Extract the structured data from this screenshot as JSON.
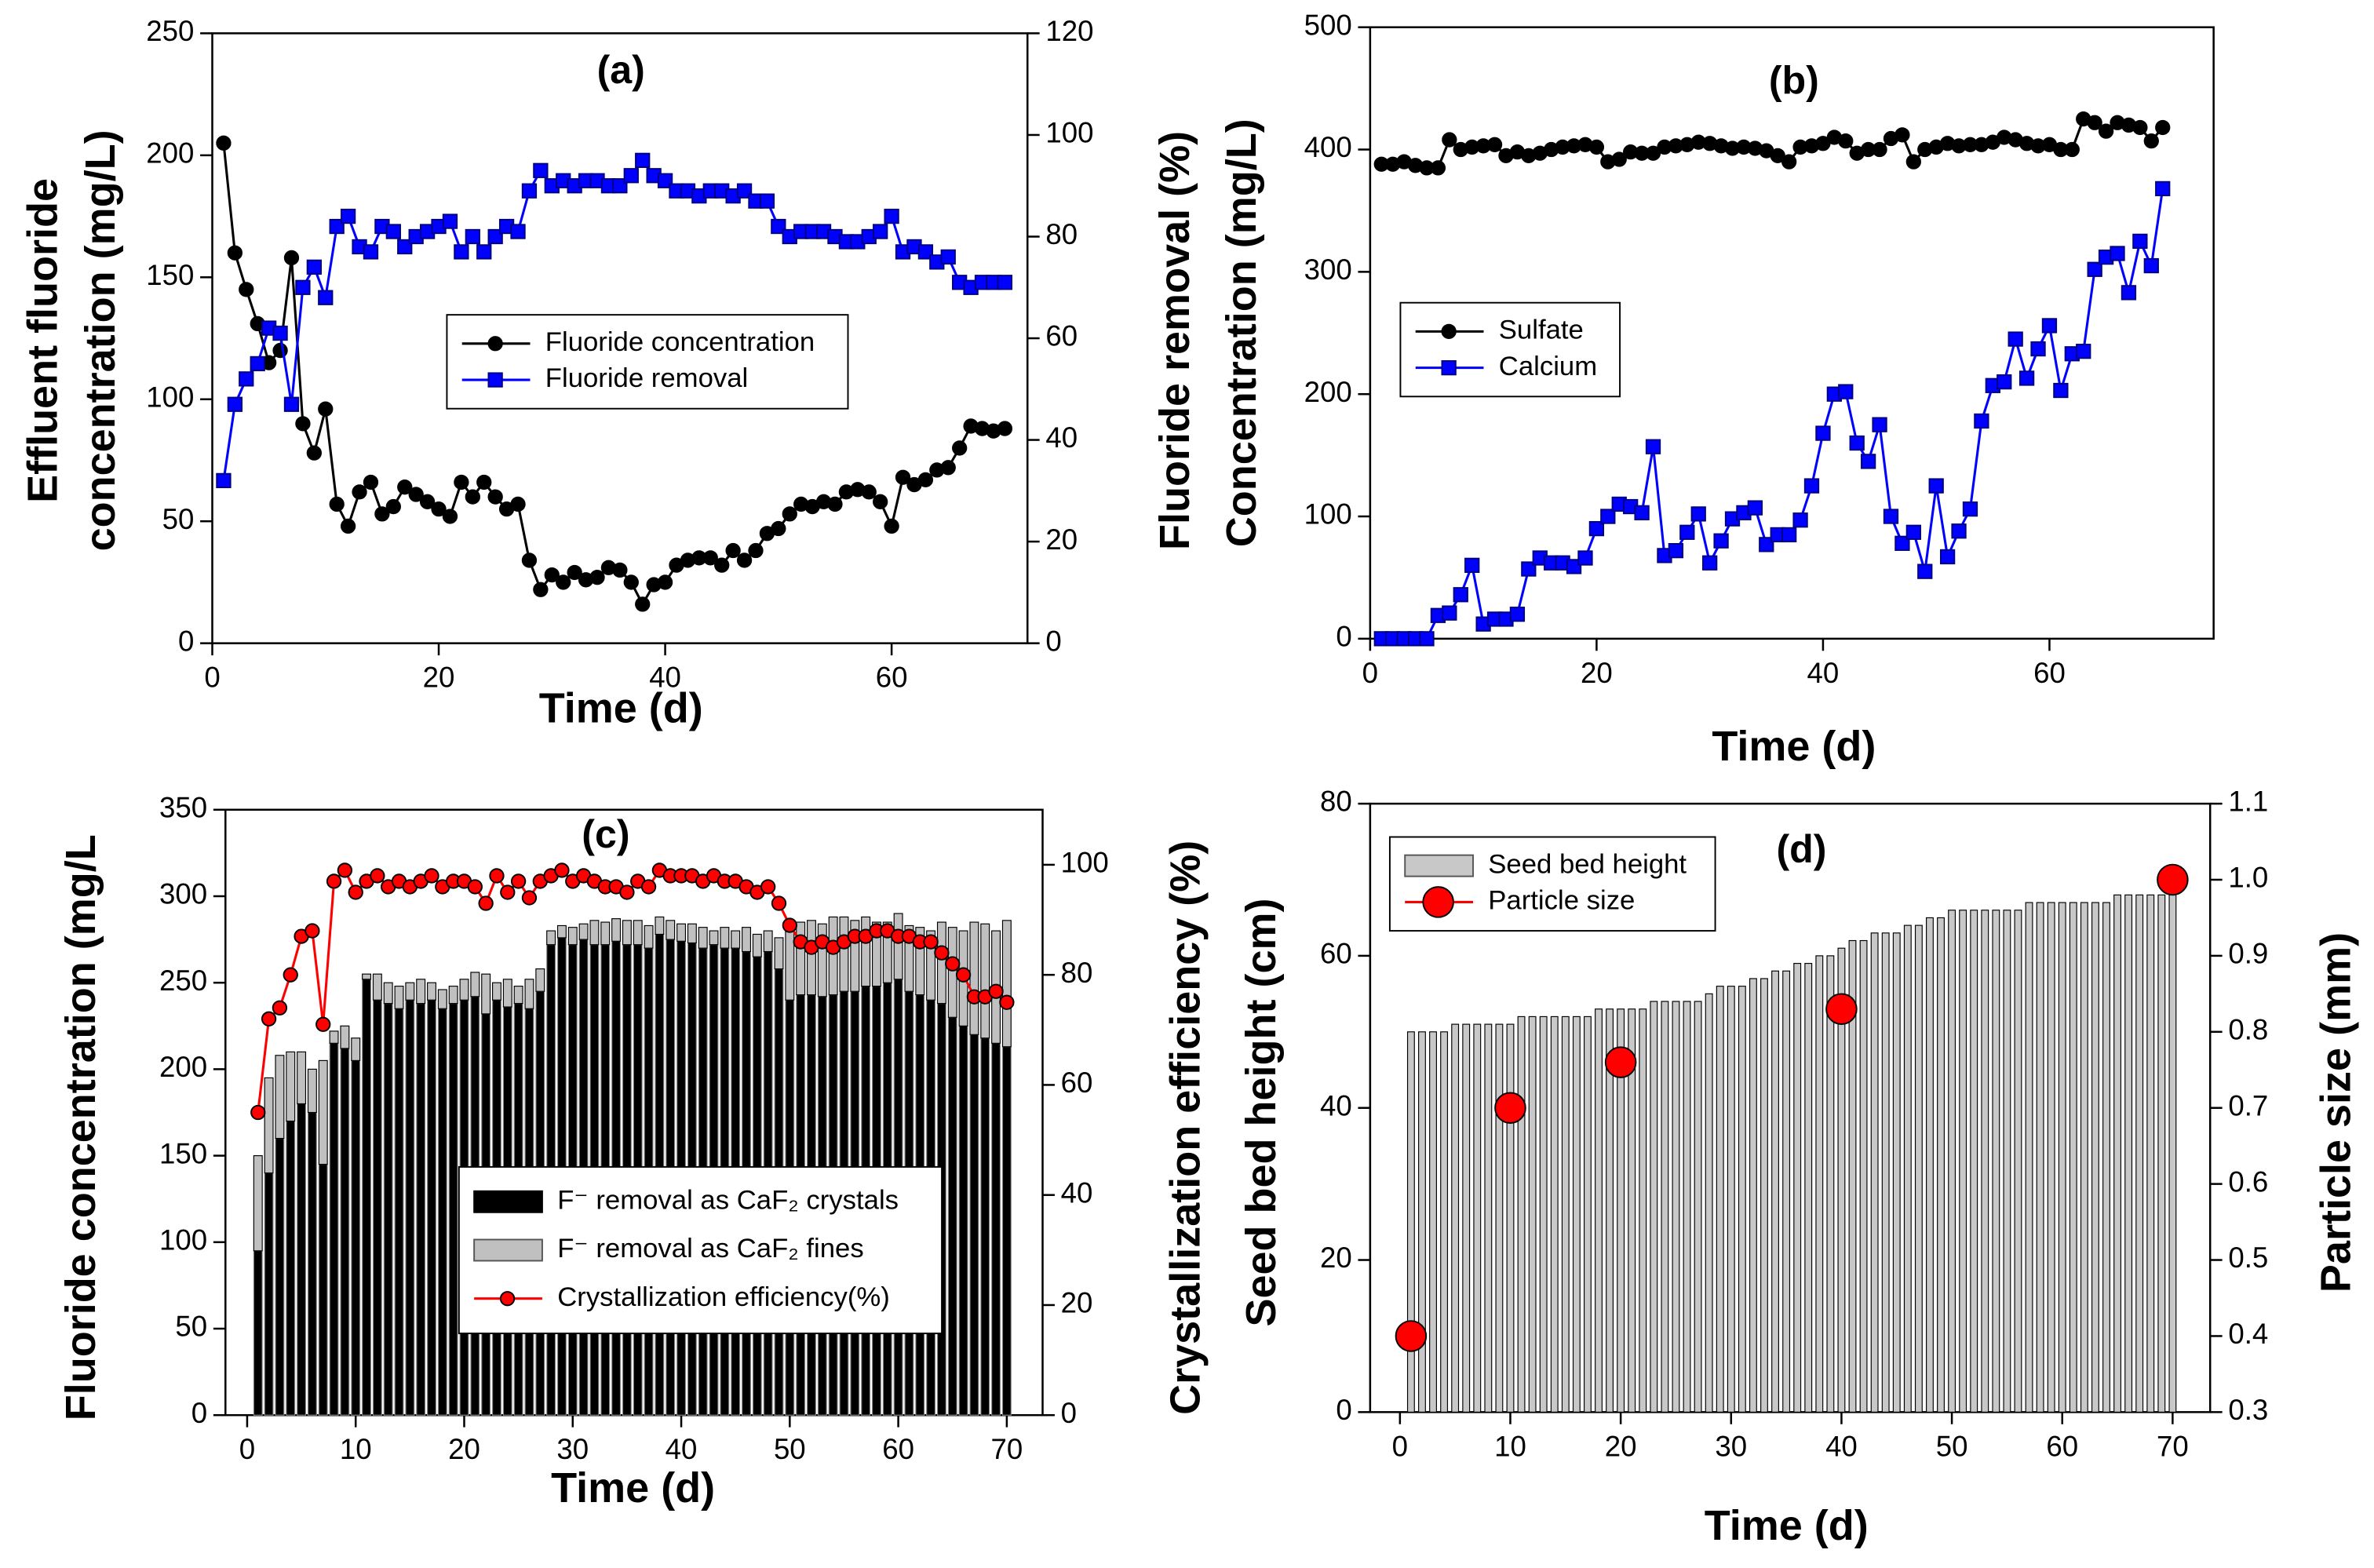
{
  "chart_data": [
    {
      "type": "line",
      "title": "(a)",
      "xlabel": "Time (d)",
      "ylabel": [
        "Effluent fluoride",
        "concentration (mg/L)"
      ],
      "y2label": "Fluoride removal (%)",
      "x": [
        1,
        2,
        3,
        4,
        5,
        6,
        7,
        8,
        9,
        10,
        11,
        12,
        13,
        14,
        15,
        16,
        17,
        18,
        19,
        20,
        21,
        22,
        23,
        24,
        25,
        26,
        27,
        28,
        29,
        30,
        31,
        32,
        33,
        34,
        35,
        36,
        37,
        38,
        39,
        40,
        41,
        42,
        43,
        44,
        45,
        46,
        47,
        48,
        49,
        50,
        51,
        52,
        53,
        54,
        55,
        56,
        57,
        58,
        59,
        60,
        61,
        62,
        63,
        64,
        65,
        66,
        67,
        68,
        69,
        70
      ],
      "xlim": [
        0,
        72
      ],
      "xticks": [
        0,
        20,
        40,
        60
      ],
      "ylim": [
        0,
        250
      ],
      "yticks": [
        0,
        50,
        100,
        150,
        200,
        250
      ],
      "y2lim": [
        0,
        120
      ],
      "y2ticks": [
        0,
        20,
        40,
        60,
        80,
        100,
        120
      ],
      "legend": "center",
      "series": [
        {
          "name": "Fluoride concentration",
          "type": "line",
          "marker": "circle",
          "color": "#000000",
          "values": [
            205,
            160,
            145,
            131,
            115,
            120,
            158,
            90,
            78,
            96,
            57,
            48,
            62,
            66,
            53,
            56,
            64,
            61,
            58,
            55,
            52,
            66,
            60,
            66,
            60,
            55,
            57,
            34,
            22,
            28,
            25,
            29,
            26,
            27,
            31,
            30,
            25,
            16,
            24,
            25,
            32,
            34,
            35,
            35,
            32,
            38,
            34,
            38,
            45,
            47,
            53,
            57,
            56,
            58,
            57,
            62,
            63,
            62,
            58,
            48,
            68,
            65,
            67,
            71,
            72,
            80,
            89,
            88,
            87,
            88
          ]
        },
        {
          "name": "Fluoride removal",
          "type": "line",
          "marker": "square",
          "color": "#0000ff",
          "axis": "y2",
          "values": [
            32,
            47,
            52,
            55,
            62,
            61,
            47,
            70,
            74,
            68,
            82,
            84,
            78,
            77,
            82,
            81,
            78,
            80,
            81,
            82,
            83,
            77,
            80,
            77,
            80,
            82,
            81,
            89,
            93,
            90,
            91,
            90,
            91,
            91,
            90,
            90,
            92,
            95,
            92,
            91,
            89,
            89,
            88,
            89,
            89,
            88,
            89,
            87,
            87,
            82,
            80,
            81,
            81,
            81,
            80,
            79,
            79,
            80,
            81,
            84,
            77,
            78,
            77,
            75,
            76,
            71,
            70,
            71,
            71,
            71
          ]
        }
      ]
    },
    {
      "type": "line",
      "title": "(b)",
      "xlabel": "Time (d)",
      "ylabel": "Concentration (mg/L)",
      "x": [
        1,
        2,
        3,
        4,
        5,
        6,
        7,
        8,
        9,
        10,
        11,
        12,
        13,
        14,
        15,
        16,
        17,
        18,
        19,
        20,
        21,
        22,
        23,
        24,
        25,
        26,
        27,
        28,
        29,
        30,
        31,
        32,
        33,
        34,
        35,
        36,
        37,
        38,
        39,
        40,
        41,
        42,
        43,
        44,
        45,
        46,
        47,
        48,
        49,
        50,
        51,
        52,
        53,
        54,
        55,
        56,
        57,
        58,
        59,
        60,
        61,
        62,
        63,
        64,
        65,
        66,
        67,
        68,
        69,
        70
      ],
      "xlim": [
        0,
        74.5
      ],
      "xticks": [
        0,
        20,
        40,
        60
      ],
      "ylim": [
        0,
        500
      ],
      "yticks": [
        0,
        100,
        200,
        300,
        400,
        500
      ],
      "legend": "center-left",
      "series": [
        {
          "name": "Sulfate",
          "type": "line",
          "marker": "circle",
          "color": "#000000",
          "values": [
            388,
            388,
            390,
            387,
            385,
            385,
            408,
            400,
            402,
            403,
            404,
            395,
            398,
            395,
            397,
            400,
            402,
            403,
            404,
            402,
            390,
            392,
            398,
            397,
            397,
            402,
            403,
            404,
            406,
            405,
            403,
            401,
            402,
            401,
            399,
            395,
            390,
            402,
            403,
            405,
            410,
            407,
            397,
            400,
            400,
            409,
            412,
            390,
            400,
            402,
            405,
            403,
            404,
            404,
            406,
            410,
            408,
            405,
            403,
            404,
            400,
            400,
            425,
            422,
            415,
            422,
            420,
            418,
            407,
            418
          ]
        },
        {
          "name": "Calcium",
          "type": "line",
          "marker": "square",
          "color": "#0000ff",
          "values": [
            0,
            0,
            0,
            0,
            0,
            19,
            21,
            36,
            60,
            12,
            16,
            16,
            20,
            57,
            66,
            62,
            62,
            59,
            66,
            90,
            100,
            110,
            108,
            103,
            157,
            68,
            72,
            87,
            102,
            62,
            80,
            98,
            103,
            107,
            77,
            85,
            85,
            97,
            125,
            168,
            200,
            202,
            160,
            145,
            175,
            100,
            78,
            87,
            55,
            125,
            67,
            88,
            106,
            178,
            207,
            210,
            245,
            213,
            237,
            256,
            203,
            233,
            235,
            302,
            312,
            315,
            283,
            325,
            305,
            368
          ]
        }
      ]
    },
    {
      "type": "bar",
      "stacked": true,
      "title": "(c)",
      "xlabel": "Time (d)",
      "ylabel": "Fluoride concentration (mg/L",
      "y2label": "Crystallization efficiency (%)",
      "x": [
        1,
        2,
        3,
        4,
        5,
        6,
        7,
        8,
        9,
        10,
        11,
        12,
        13,
        14,
        15,
        16,
        17,
        18,
        19,
        20,
        21,
        22,
        23,
        24,
        25,
        26,
        27,
        28,
        29,
        30,
        31,
        32,
        33,
        34,
        35,
        36,
        37,
        38,
        39,
        40,
        41,
        42,
        43,
        44,
        45,
        46,
        47,
        48,
        49,
        50,
        51,
        52,
        53,
        54,
        55,
        56,
        57,
        58,
        59,
        60,
        61,
        62,
        63,
        64,
        65,
        66,
        67,
        68,
        69,
        70
      ],
      "xlim": [
        -2,
        73.3
      ],
      "xticks": [
        0,
        10,
        20,
        30,
        40,
        50,
        60,
        70
      ],
      "ylim": [
        0,
        350
      ],
      "yticks": [
        0,
        50,
        100,
        150,
        200,
        250,
        300,
        350
      ],
      "y2lim": [
        0,
        110
      ],
      "y2ticks": [
        0,
        20,
        40,
        60,
        80,
        100
      ],
      "legend": "lower-center",
      "series": [
        {
          "name": "F⁻ removal as CaF₂ crystals",
          "type": "bar",
          "color": "#000000",
          "values": [
            95,
            140,
            160,
            170,
            180,
            175,
            145,
            215,
            212,
            205,
            252,
            240,
            238,
            235,
            240,
            238,
            240,
            235,
            238,
            240,
            242,
            232,
            240,
            236,
            238,
            235,
            245,
            272,
            276,
            272,
            275,
            272,
            272,
            274,
            272,
            272,
            270,
            278,
            275,
            274,
            273,
            270,
            272,
            270,
            270,
            268,
            265,
            268,
            258,
            240,
            243,
            243,
            242,
            243,
            245,
            245,
            248,
            248,
            250,
            252,
            245,
            243,
            240,
            238,
            230,
            225,
            220,
            218,
            215,
            213
          ]
        },
        {
          "name": "F⁻ removal as CaF₂ fines",
          "type": "bar",
          "color": "#c0c0c0",
          "values": [
            55,
            55,
            48,
            40,
            30,
            25,
            60,
            7,
            13,
            13,
            3,
            15,
            12,
            13,
            10,
            14,
            10,
            11,
            10,
            12,
            14,
            23,
            10,
            16,
            10,
            17,
            13,
            8,
            7,
            10,
            9,
            14,
            13,
            13,
            14,
            14,
            13,
            10,
            11,
            10,
            11,
            12,
            8,
            12,
            10,
            14,
            13,
            12,
            18,
            42,
            42,
            43,
            42,
            45,
            43,
            41,
            40,
            37,
            35,
            38,
            38,
            39,
            40,
            47,
            52,
            55,
            65,
            66,
            65,
            73
          ]
        },
        {
          "name": "Crystallization efficiency(%)",
          "type": "line",
          "marker": "circle",
          "color": "#ff0000",
          "axis": "y2",
          "values": [
            55,
            72,
            74,
            80,
            87,
            88,
            71,
            97,
            99,
            95,
            97,
            98,
            96,
            97,
            96,
            97,
            98,
            96,
            97,
            97,
            96,
            93,
            98,
            95,
            97,
            94,
            97,
            98,
            99,
            97,
            98,
            97,
            96,
            96,
            95,
            97,
            96,
            99,
            98,
            98,
            98,
            97,
            98,
            97,
            97,
            96,
            95,
            96,
            93,
            89,
            86,
            85,
            86,
            85,
            86,
            87,
            87,
            88,
            88,
            87,
            87,
            86,
            86,
            84,
            82,
            80,
            76,
            76,
            77,
            75
          ]
        }
      ]
    },
    {
      "type": "bar",
      "title": "(d)",
      "xlabel": "Time (d)",
      "ylabel": "Seed bed height (cm)",
      "y2label": "Particle size (mm)",
      "x": [
        1,
        2,
        3,
        4,
        5,
        6,
        7,
        8,
        9,
        10,
        11,
        12,
        13,
        14,
        15,
        16,
        17,
        18,
        19,
        20,
        21,
        22,
        23,
        24,
        25,
        26,
        27,
        28,
        29,
        30,
        31,
        32,
        33,
        34,
        35,
        36,
        37,
        38,
        39,
        40,
        41,
        42,
        43,
        44,
        45,
        46,
        47,
        48,
        49,
        50,
        51,
        52,
        53,
        54,
        55,
        56,
        57,
        58,
        59,
        60,
        61,
        62,
        63,
        64,
        65,
        66,
        67,
        68,
        69,
        70
      ],
      "xlim": [
        -2.7,
        73.4
      ],
      "xticks": [
        0,
        10,
        20,
        30,
        40,
        50,
        60,
        70
      ],
      "ylim": [
        0,
        80
      ],
      "yticks": [
        0,
        20,
        40,
        60,
        80
      ],
      "y2lim": [
        0.3,
        1.1
      ],
      "y2ticks": [
        0.3,
        0.4,
        0.5,
        0.6,
        0.7,
        0.8,
        0.9,
        {
          "value": 1,
          "label": "1.0"
        },
        1.1
      ],
      "legend": "upper-left",
      "series": [
        {
          "name": "Seed bed height",
          "type": "bar",
          "color": "#c8c8c8",
          "values": [
            50,
            50,
            50,
            50,
            51,
            51,
            51,
            51,
            51,
            51,
            52,
            52,
            52,
            52,
            52,
            52,
            52,
            53,
            53,
            53,
            53,
            53,
            54,
            54,
            54,
            54,
            54,
            55,
            56,
            56,
            56,
            57,
            57,
            58,
            58,
            59,
            59,
            60,
            60,
            61,
            62,
            62,
            63,
            63,
            63,
            64,
            64,
            65,
            65,
            66,
            66,
            66,
            66,
            66,
            66,
            66,
            67,
            67,
            67,
            67,
            67,
            67,
            67,
            67,
            68,
            68,
            68,
            68,
            68,
            68
          ]
        },
        {
          "name": "Particle size",
          "type": "scatter",
          "marker": "circle",
          "color": "#ff0000",
          "axis": "y2",
          "x": [
            1,
            10,
            20,
            40,
            70
          ],
          "values": [
            0.4,
            0.7,
            0.76,
            0.83,
            1.0
          ]
        }
      ]
    }
  ]
}
